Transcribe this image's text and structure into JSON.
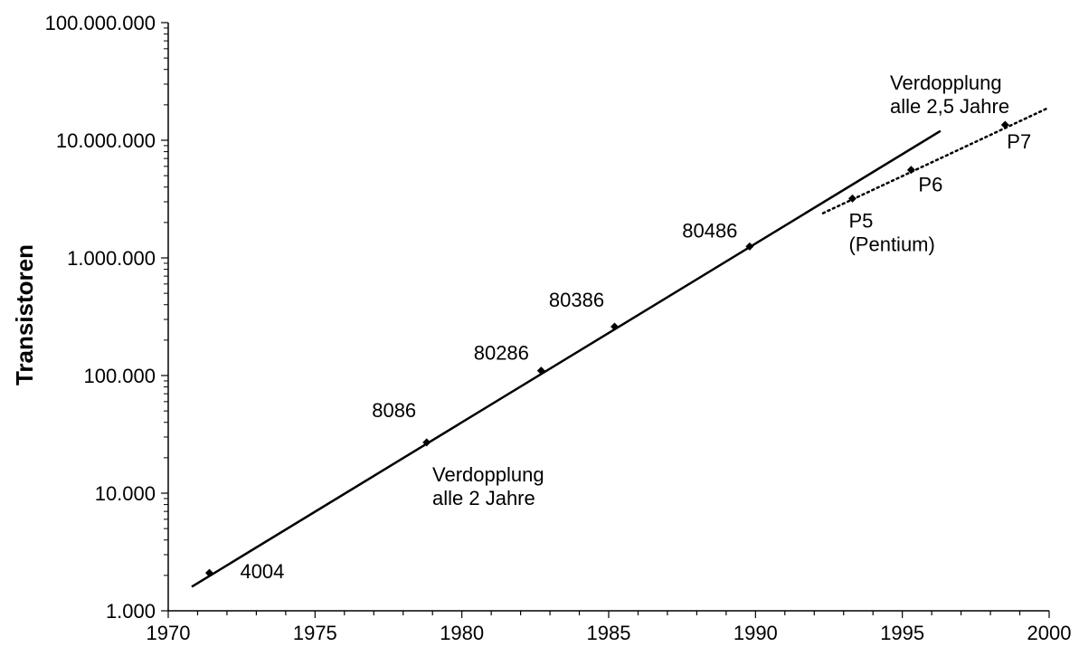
{
  "chart_data": {
    "type": "line",
    "title": "",
    "xlabel": "",
    "ylabel": "Transistoren",
    "yscale": "log",
    "xlim": [
      1970,
      2000
    ],
    "ylim": [
      1000,
      100000000
    ],
    "grid": false,
    "x_ticks": [
      {
        "value": 1970,
        "label": "1970"
      },
      {
        "value": 1975,
        "label": "1975"
      },
      {
        "value": 1980,
        "label": "1980"
      },
      {
        "value": 1985,
        "label": "1985"
      },
      {
        "value": 1990,
        "label": "1990"
      },
      {
        "value": 1995,
        "label": "1995"
      },
      {
        "value": 2000,
        "label": "2000"
      }
    ],
    "y_ticks": [
      {
        "value": 1000,
        "label": "1.000"
      },
      {
        "value": 10000,
        "label": "10.000"
      },
      {
        "value": 100000,
        "label": "100.000"
      },
      {
        "value": 1000000,
        "label": "1.000.000"
      },
      {
        "value": 10000000,
        "label": "10.000.000"
      },
      {
        "value": 100000000,
        "label": "100.000.000"
      }
    ],
    "series": [
      {
        "style": "solid",
        "line": [
          [
            1970.8,
            1600
          ],
          [
            1996.3,
            12000000
          ]
        ]
      },
      {
        "style": "dotted",
        "line": [
          [
            1992.3,
            2400000
          ],
          [
            2000,
            19000000
          ]
        ]
      }
    ],
    "points": [
      {
        "label": "4004",
        "x": 1971.4,
        "y": 2100
      },
      {
        "label": "8086",
        "x": 1978.8,
        "y": 27000
      },
      {
        "label": "80286",
        "x": 1982.7,
        "y": 110000
      },
      {
        "label": "80386",
        "x": 1985.2,
        "y": 260000
      },
      {
        "label": "80486",
        "x": 1989.8,
        "y": 1250000
      },
      {
        "label": "P5 (Pentium)",
        "x": 1993.3,
        "y": 3200000
      },
      {
        "label": "P6",
        "x": 1995.3,
        "y": 5600000
      },
      {
        "label": "P7",
        "x": 1998.5,
        "y": 13500000
      }
    ],
    "annotations": [
      {
        "text": [
          "Verdopplung",
          "alle 2 Jahre"
        ]
      },
      {
        "text": [
          "Verdopplung",
          "alle 2,5 Jahre"
        ]
      }
    ]
  }
}
